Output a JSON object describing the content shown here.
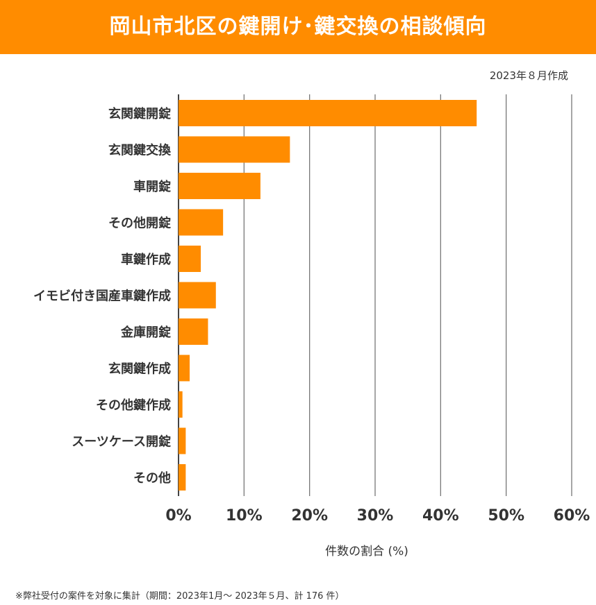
{
  "header": {
    "title": "岡山市北区の鍵開け･鍵交換の相談傾向"
  },
  "note_made": "2023年８月作成",
  "footnote": "※弊社受付の案件を対象に集計（期間：2023年1月～ 2023年５月、計 176 件）",
  "chart_data": {
    "type": "bar",
    "orientation": "horizontal",
    "title": "岡山市北区の鍵開け･鍵交換の相談傾向",
    "xlabel": "件数の割合 (%)",
    "ylabel": "",
    "categories": [
      "玄関鍵開錠",
      "玄関鍵交換",
      "車開錠",
      "その他開錠",
      "車鍵作成",
      "イモビ付き国産車鍵作成",
      "金庫開錠",
      "玄関鍵作成",
      "その他鍵作成",
      "スーツケース開錠",
      "その他"
    ],
    "values": [
      45.5,
      17.0,
      12.5,
      6.8,
      3.4,
      5.7,
      4.5,
      1.7,
      0.6,
      1.1,
      1.1
    ],
    "xlim": [
      0,
      60
    ],
    "xticks": [
      "0%",
      "10%",
      "20%",
      "30%",
      "40%",
      "50%",
      "60%"
    ],
    "grid": true,
    "bar_color": "#FF8C00"
  }
}
